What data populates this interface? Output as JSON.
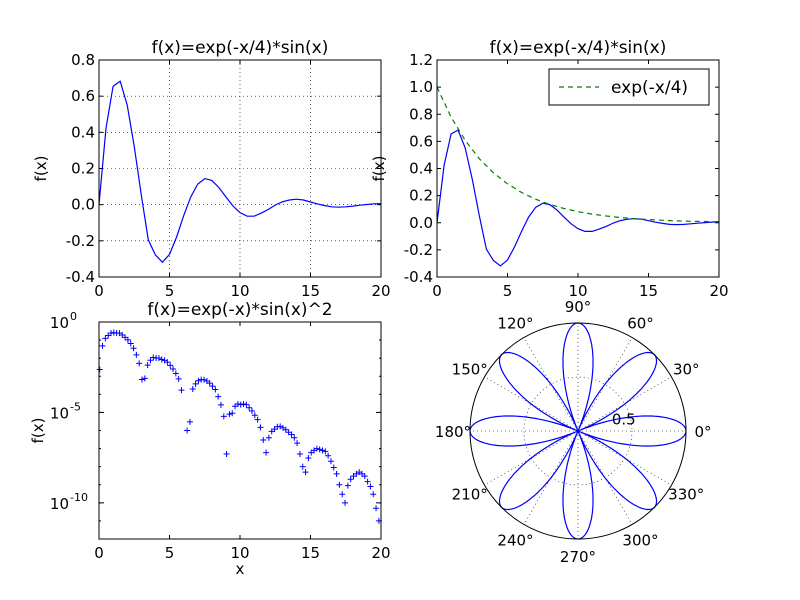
{
  "chart_data": [
    {
      "type": "line",
      "title": "f(x)=exp(-x/4)*sin(x)",
      "xlabel": "",
      "ylabel": "f(x)",
      "xlim": [
        0,
        20
      ],
      "ylim": [
        -0.4,
        0.8
      ],
      "xticks": [
        "0",
        "5",
        "10",
        "15",
        "20"
      ],
      "yticks": [
        "-0.4",
        "-0.2",
        "0.0",
        "0.2",
        "0.4",
        "0.6",
        "0.8"
      ],
      "grid": true,
      "color": "#0000ff",
      "series": [
        {
          "x": [
            0,
            0.5,
            1,
            1.5,
            2,
            2.5,
            3,
            3.5,
            4,
            4.5,
            5,
            5.5,
            6,
            6.5,
            7,
            7.5,
            8,
            8.5,
            9,
            9.5,
            10,
            10.5,
            11,
            11.5,
            12,
            12.5,
            13,
            13.5,
            14,
            14.5,
            15,
            15.5,
            16,
            16.5,
            17,
            17.5,
            18,
            18.5,
            19,
            19.5,
            20
          ],
          "y": [
            0,
            0.423,
            0.655,
            0.683,
            0.551,
            0.32,
            0.053,
            -0.195,
            -0.278,
            -0.318,
            -0.275,
            -0.179,
            -0.062,
            0.042,
            0.114,
            0.144,
            0.134,
            0.095,
            0.043,
            -0.007,
            -0.044,
            -0.064,
            -0.064,
            -0.047,
            -0.027,
            -0.002,
            0.016,
            0.026,
            0.03,
            0.026,
            0.015,
            0.004,
            -0.005,
            -0.012,
            -0.014,
            -0.012,
            -0.008,
            -0.003,
            0.001,
            0.005,
            0.006
          ]
        }
      ]
    },
    {
      "type": "line",
      "title": "f(x)=exp(-x/4)*sin(x)",
      "xlabel": "",
      "ylabel": "f(x)",
      "xlim": [
        0,
        20
      ],
      "ylim": [
        -0.4,
        1.2
      ],
      "xticks": [
        "0",
        "5",
        "10",
        "15",
        "20"
      ],
      "yticks": [
        "-0.4",
        "-0.2",
        "0.0",
        "0.2",
        "0.4",
        "0.6",
        "0.8",
        "1.0",
        "1.2"
      ],
      "grid": false,
      "legend": {
        "placement": "top-right",
        "entries": [
          "exp(-x/4)"
        ]
      },
      "series": [
        {
          "color": "#0000ff",
          "x": [
            0,
            0.5,
            1,
            1.5,
            2,
            2.5,
            3,
            3.5,
            4,
            4.5,
            5,
            5.5,
            6,
            6.5,
            7,
            7.5,
            8,
            8.5,
            9,
            9.5,
            10,
            10.5,
            11,
            11.5,
            12,
            12.5,
            13,
            13.5,
            14,
            14.5,
            15,
            15.5,
            16,
            16.5,
            17,
            17.5,
            18,
            18.5,
            19,
            19.5,
            20
          ],
          "y": [
            0,
            0.423,
            0.655,
            0.683,
            0.551,
            0.32,
            0.053,
            -0.195,
            -0.278,
            -0.318,
            -0.275,
            -0.179,
            -0.062,
            0.042,
            0.114,
            0.144,
            0.134,
            0.095,
            0.043,
            -0.007,
            -0.044,
            -0.064,
            -0.064,
            -0.047,
            -0.027,
            -0.002,
            0.016,
            0.026,
            0.03,
            0.026,
            0.015,
            0.004,
            -0.005,
            -0.012,
            -0.014,
            -0.012,
            -0.008,
            -0.003,
            0.001,
            0.005,
            0.006
          ]
        },
        {
          "name": "exp(-x/4)",
          "color": "#008000",
          "style": "dashed",
          "x": [
            0,
            1,
            2,
            3,
            4,
            5,
            6,
            7,
            8,
            9,
            10,
            11,
            12,
            13,
            14,
            15,
            16,
            17,
            18,
            19,
            20
          ],
          "y": [
            1.0,
            0.779,
            0.607,
            0.472,
            0.368,
            0.287,
            0.223,
            0.174,
            0.135,
            0.105,
            0.082,
            0.064,
            0.05,
            0.039,
            0.03,
            0.024,
            0.018,
            0.014,
            0.011,
            0.009,
            0.007
          ]
        }
      ]
    },
    {
      "type": "scatter",
      "title": "f(x)=exp(-x)*sin(x)^2",
      "xlabel": "x",
      "ylabel": "f(x)",
      "xlim": [
        0,
        20
      ],
      "ylim": [
        1e-12,
        1
      ],
      "yscale": "log",
      "marker": "+",
      "color": "#0000ff",
      "xticks": [
        "0",
        "5",
        "10",
        "15",
        "20"
      ],
      "yticks": [
        {
          "base": "10",
          "exp": "0"
        },
        {
          "base": "10",
          "exp": "-5"
        },
        {
          "base": "10",
          "exp": "-10"
        }
      ],
      "series": [
        {
          "x": [
            0.05,
            0.25,
            0.45,
            0.65,
            0.85,
            1.05,
            1.25,
            1.45,
            1.65,
            1.85,
            2.05,
            2.25,
            2.45,
            2.65,
            2.85,
            3.05,
            3.25,
            3.45,
            3.65,
            3.85,
            4.05,
            4.25,
            4.45,
            4.65,
            4.85,
            5.05,
            5.25,
            5.45,
            5.65,
            5.85,
            6.25,
            6.45,
            6.65,
            6.85,
            7.05,
            7.25,
            7.45,
            7.65,
            7.85,
            8.05,
            8.25,
            8.45,
            8.65,
            8.85,
            9.05,
            9.25,
            9.45,
            9.65,
            9.85,
            10.05,
            10.25,
            10.45,
            10.65,
            10.85,
            11.05,
            11.25,
            11.45,
            11.65,
            11.85,
            12.05,
            12.25,
            12.45,
            12.65,
            12.85,
            13.05,
            13.25,
            13.45,
            13.65,
            13.85,
            14.05,
            14.25,
            14.45,
            14.65,
            14.85,
            15.05,
            15.25,
            15.45,
            15.65,
            15.85,
            16.05,
            16.25,
            16.45,
            16.65,
            16.85,
            17.05,
            17.25,
            17.45,
            17.65,
            17.85,
            18.05,
            18.25,
            18.45,
            18.65,
            18.85,
            19.05,
            19.25,
            19.45,
            19.65,
            19.85
          ],
          "y": [
            0.00238,
            0.04784,
            0.12352,
            0.17806,
            0.24184,
            0.26042,
            0.24786,
            0.24402,
            0.18962,
            0.14162,
            0.10227,
            0.06425,
            0.03526,
            0.01525,
            0.00519,
            0.00066,
            0.00076,
            0.00415,
            0.00767,
            0.01089,
            0.01029,
            0.01009,
            0.00842,
            0.00756,
            0.00603,
            0.00401,
            0.00253,
            0.00142,
            0.00072,
            0.00017,
            1e-06,
            3e-06,
            0.000197,
            0.000378,
            0.000567,
            0.000652,
            0.00064,
            0.00055,
            0.000417,
            0.000285,
            0.000185,
            7.5e-05,
            2.6e-05,
            6e-06,
            5e-08,
            8e-06,
            9e-06,
            2.2e-05,
            2.9e-05,
            2.7e-05,
            2.9e-05,
            2.7e-05,
            1.8e-05,
            1.2e-05,
            7e-06,
            4e-06,
            1.5e-06,
            3e-07,
            6e-08,
            4e-07,
            9e-07,
            1.2e-06,
            1.6e-06,
            1.7e-06,
            1.4e-06,
            1.1e-06,
            8e-07,
            6e-07,
            4e-07,
            2e-07,
            5e-08,
            1e-08,
            5e-09,
            3e-08,
            6e-08,
            8e-08,
            1e-07,
            9e-08,
            8e-08,
            7e-08,
            4e-08,
            2e-08,
            9e-09,
            4e-09,
            1e-09,
            3e-10,
            1e-10,
            9e-10,
            2e-09,
            3e-09,
            4e-09,
            5e-09,
            4e-09,
            3e-09,
            1.5e-09,
            8e-10,
            3e-10,
            5e-11,
            1e-11
          ]
        }
      ]
    },
    {
      "type": "line",
      "projection": "polar",
      "title": "",
      "color": "#0000ff",
      "r_expression": "cos(4*theta)",
      "r_max": 1,
      "r_ticks": [
        "0.5"
      ],
      "angle_ticks": [
        "0°",
        "30°",
        "60°",
        "90°",
        "120°",
        "150°",
        "180°",
        "210°",
        "240°",
        "270°",
        "300°",
        "330°"
      ],
      "grid": true
    }
  ]
}
